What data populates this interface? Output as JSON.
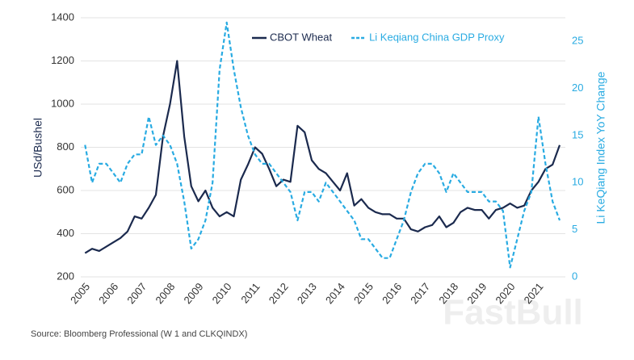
{
  "chart_data": {
    "type": "line",
    "x": [
      2005,
      2005.25,
      2005.5,
      2005.75,
      2006,
      2006.25,
      2006.5,
      2006.75,
      2007,
      2007.25,
      2007.5,
      2007.75,
      2008,
      2008.25,
      2008.5,
      2008.75,
      2009,
      2009.25,
      2009.5,
      2009.75,
      2010,
      2010.25,
      2010.5,
      2010.75,
      2011,
      2011.25,
      2011.5,
      2011.75,
      2012,
      2012.25,
      2012.5,
      2012.75,
      2013,
      2013.25,
      2013.5,
      2013.75,
      2014,
      2014.25,
      2014.5,
      2014.75,
      2015,
      2015.25,
      2015.5,
      2015.75,
      2016,
      2016.25,
      2016.5,
      2016.75,
      2017,
      2017.25,
      2017.5,
      2017.75,
      2018,
      2018.25,
      2018.5,
      2018.75,
      2019,
      2019.25,
      2019.5,
      2019.75,
      2020,
      2020.25,
      2020.5,
      2020.75,
      2021,
      2021.25,
      2021.5,
      2021.75
    ],
    "series": [
      {
        "name": "CBOT Wheat",
        "color": "#1b2a4e",
        "dash": false,
        "values": [
          310,
          330,
          320,
          340,
          360,
          380,
          410,
          480,
          470,
          520,
          580,
          850,
          1000,
          1200,
          850,
          620,
          550,
          600,
          520,
          480,
          500,
          480,
          650,
          720,
          800,
          770,
          700,
          620,
          650,
          640,
          900,
          870,
          740,
          700,
          680,
          640,
          600,
          680,
          530,
          560,
          520,
          500,
          490,
          490,
          470,
          470,
          420,
          410,
          430,
          440,
          480,
          430,
          450,
          500,
          520,
          510,
          510,
          470,
          510,
          520,
          540,
          520,
          530,
          600,
          640,
          700,
          720,
          810
        ]
      },
      {
        "name": "Li Keqiang China GDP Proxy",
        "color": "#29abe2",
        "dash": true,
        "axis": "y2",
        "values": [
          14,
          10,
          12,
          12,
          11,
          10,
          12,
          13,
          13,
          17,
          14,
          15,
          14,
          12,
          8,
          3,
          4,
          6,
          10,
          22,
          27,
          22,
          18,
          15,
          13,
          12,
          12,
          11,
          10,
          9,
          6,
          9,
          9,
          8,
          10,
          9,
          8,
          7,
          6,
          4,
          4,
          3,
          2,
          2,
          4,
          6,
          9,
          11,
          12,
          12,
          11,
          9,
          11,
          10,
          9,
          9,
          9,
          8,
          8,
          7,
          1,
          4,
          7,
          9,
          17,
          12,
          8,
          6
        ]
      }
    ],
    "xlim": [
      2004.85,
      2021.95
    ],
    "xticks": [
      2005,
      2006,
      2007,
      2008,
      2009,
      2010,
      2011,
      2012,
      2013,
      2014,
      2015,
      2016,
      2017,
      2018,
      2019,
      2020,
      2021
    ],
    "ylim": [
      200,
      1400
    ],
    "yticks": [
      200,
      400,
      600,
      800,
      1000,
      1200,
      1400
    ],
    "y2lim": [
      0,
      27.5
    ],
    "y2ticks": [
      0,
      5,
      10,
      15,
      20,
      25
    ],
    "ylabel": "USd/Bushel",
    "y2label": "Li KeQiang Index YoY Change",
    "grid": true,
    "source": "Source: Bloomberg Professional (W 1 and CLKQINDX)",
    "watermark": "FastBull"
  }
}
